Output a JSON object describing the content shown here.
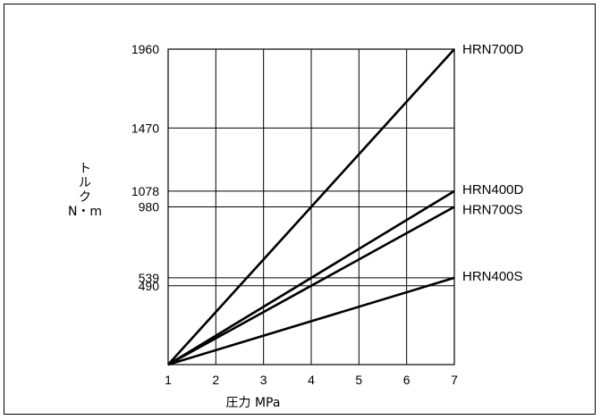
{
  "chart_data": {
    "type": "line",
    "xlabel": "圧力 MPa",
    "ylabel": {
      "lines": [
        "ト",
        "ル",
        "ク",
        "N・m"
      ]
    },
    "xlim": [
      1,
      7
    ],
    "ylim": [
      0,
      1960
    ],
    "x_ticks": [
      1,
      2,
      3,
      4,
      5,
      6,
      7
    ],
    "y_ticks": [
      490,
      539,
      980,
      1078,
      1470,
      1960
    ],
    "grid": true,
    "series": [
      {
        "name": "HRN700D",
        "x": [
          1,
          7
        ],
        "y": [
          0,
          1960
        ]
      },
      {
        "name": "HRN400D",
        "x": [
          1,
          7
        ],
        "y": [
          0,
          1078
        ]
      },
      {
        "name": "HRN700S",
        "x": [
          1,
          7
        ],
        "y": [
          0,
          980
        ]
      },
      {
        "name": "HRN400S",
        "x": [
          1,
          7
        ],
        "y": [
          0,
          539
        ]
      }
    ]
  }
}
